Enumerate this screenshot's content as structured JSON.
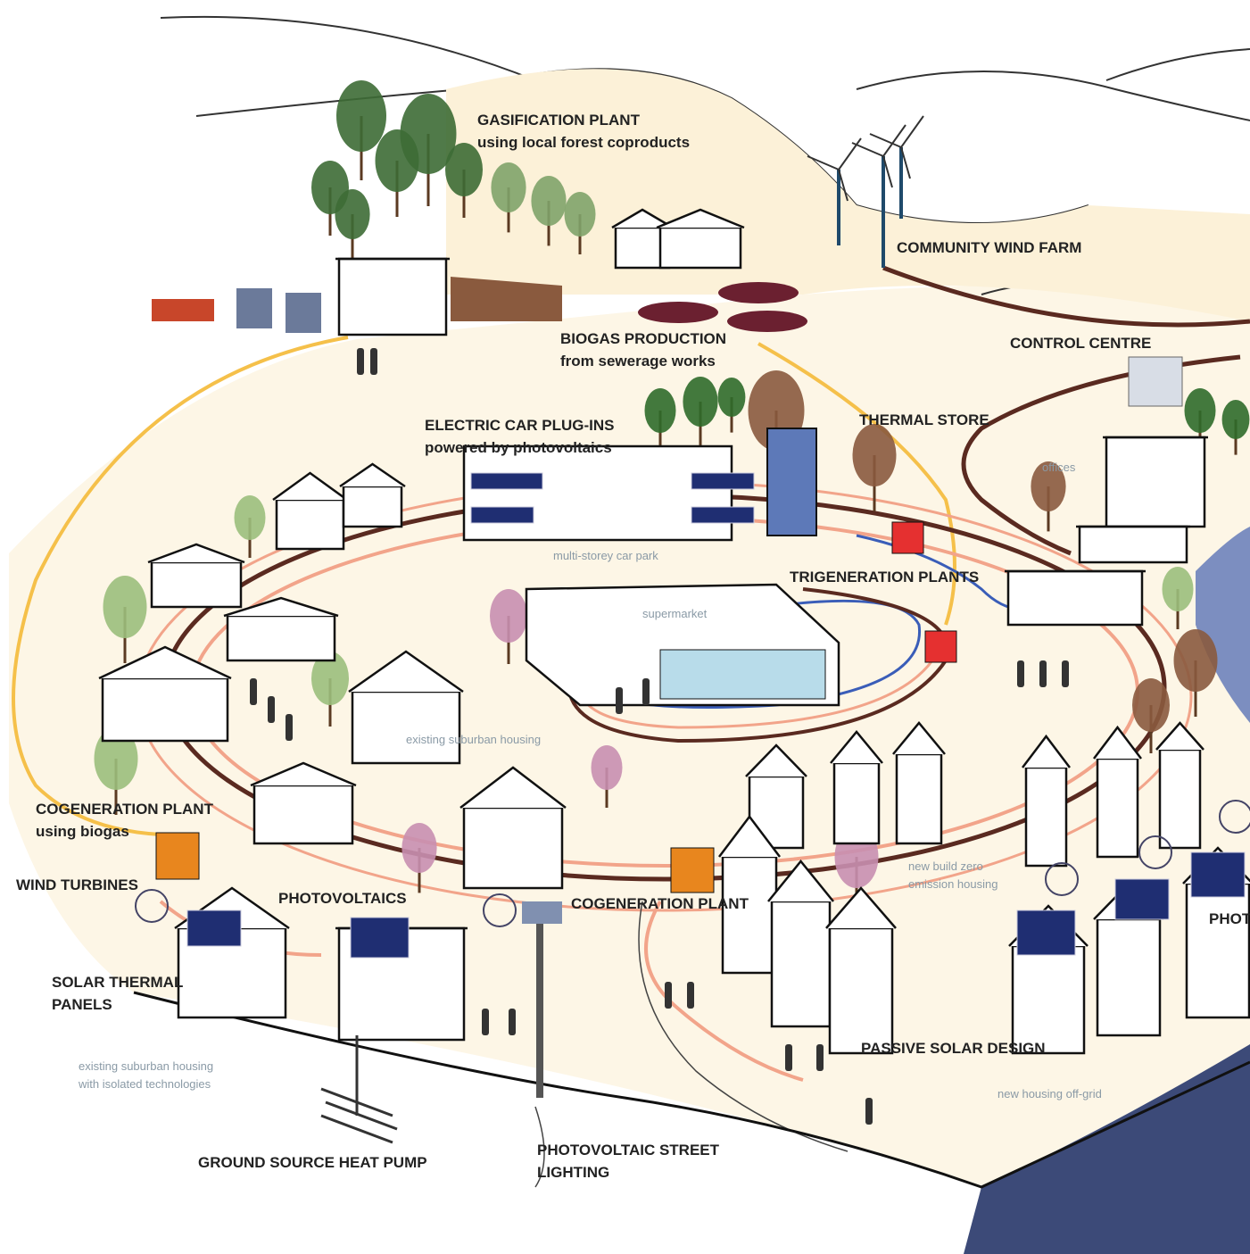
{
  "labels": [
    {
      "lines": [
        "GASIFICATION PLANT",
        "using local forest coproducts"
      ]
    },
    {
      "lines": [
        "COMMUNITY WIND FARM"
      ]
    },
    {
      "lines": [
        "BIOGAS PRODUCTION",
        "from sewerage works"
      ]
    },
    {
      "lines": [
        "CONTROL CENTRE"
      ]
    },
    {
      "lines": [
        "ELECTRIC CAR PLUG-INS",
        "powered by photovoltaics"
      ]
    },
    {
      "lines": [
        "THERMAL STORE"
      ]
    },
    {
      "lines": [
        "TRIGENERATION PLANTS"
      ]
    },
    {
      "lines": [
        "COGENERATION PLANT",
        "using biogas"
      ]
    },
    {
      "lines": [
        "WIND TURBINES"
      ]
    },
    {
      "lines": [
        "PHOTOVOLTAICS"
      ]
    },
    {
      "lines": [
        "COGENERATION PLANT"
      ]
    },
    {
      "lines": [
        "SOLAR THERMAL",
        "PANELS"
      ]
    },
    {
      "lines": [
        "PASSIVE SOLAR DESIGN"
      ]
    },
    {
      "lines": [
        "GROUND SOURCE HEAT PUMP"
      ]
    },
    {
      "lines": [
        "PHOTOVOLTAIC STREET",
        "LIGHTING"
      ]
    },
    {
      "lines": [
        "PHOT"
      ]
    }
  ],
  "notes": [
    {
      "lines": [
        "offices"
      ]
    },
    {
      "lines": [
        "multi-storey car park"
      ]
    },
    {
      "lines": [
        "supermarket"
      ]
    },
    {
      "lines": [
        "existing suburban housing"
      ]
    },
    {
      "lines": [
        "new build zero",
        "emission housing"
      ]
    },
    {
      "lines": [
        "existing suburban housing",
        "with isolated technologies"
      ]
    },
    {
      "lines": [
        "new housing off-grid"
      ]
    }
  ]
}
